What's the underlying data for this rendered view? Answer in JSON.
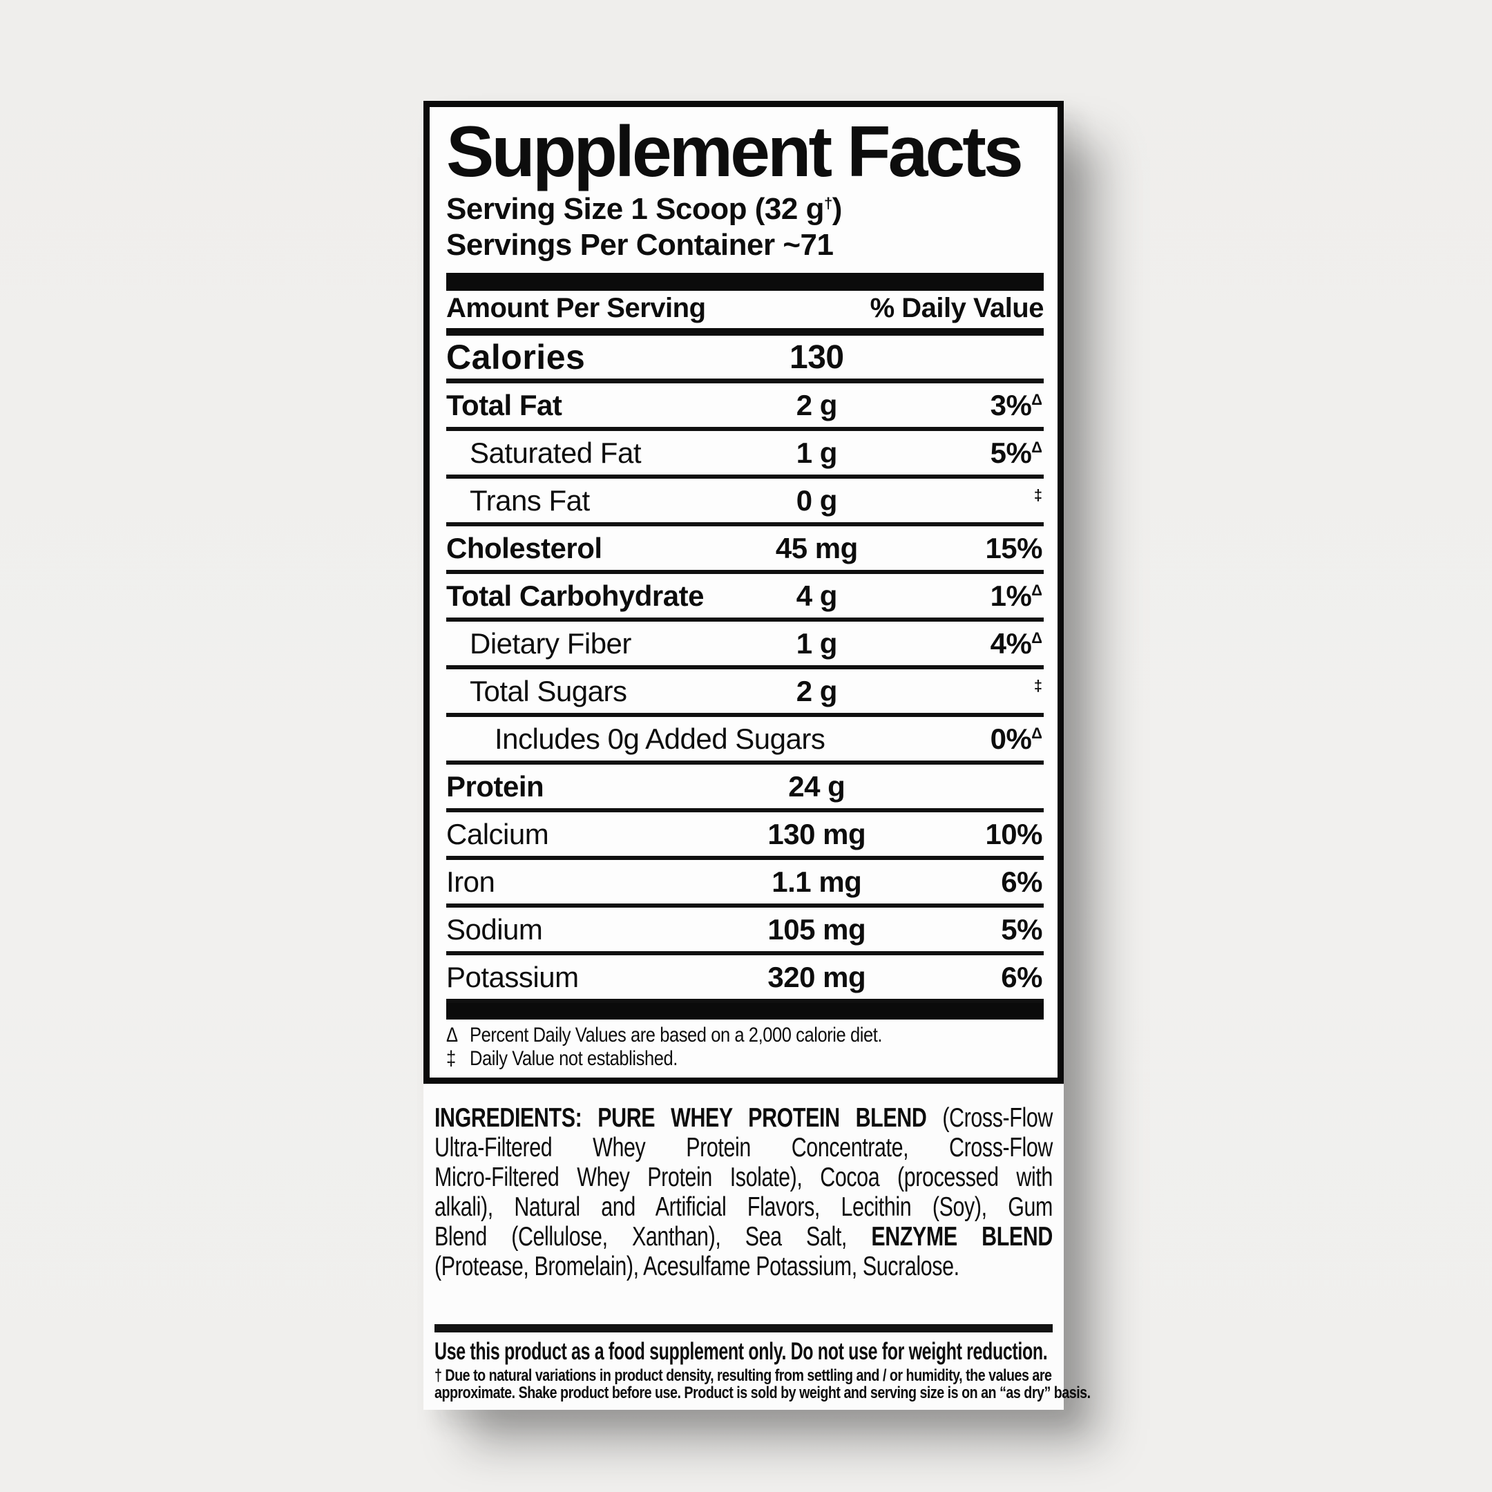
{
  "colors": {
    "page_bg": "#f0efee",
    "label_bg": "#fcfcfc",
    "ink": "#0d0d0d",
    "shadow": "rgba(30,30,30,0.34)"
  },
  "facts": {
    "title": "Supplement Facts",
    "serving_prefix": "Serving Size 1 Scoop (32 g",
    "serving_dagger": "†",
    "serving_suffix": ")",
    "servings_per_container": "Servings Per Container ~71",
    "amount_header": "Amount Per Serving",
    "dv_header": "% Daily Value",
    "calories_label": "Calories",
    "calories_value": "130",
    "rows": [
      {
        "label": "Total Fat",
        "amount": "2 g",
        "dv": "3%",
        "sym": "Δ"
      },
      {
        "label": "Saturated Fat",
        "amount": "1 g",
        "dv": "5%",
        "sym": "Δ"
      },
      {
        "label": "Trans Fat",
        "amount": "0 g",
        "dv": "",
        "sym": "‡"
      },
      {
        "label": "Cholesterol",
        "amount": "45 mg",
        "dv": "15%",
        "sym": ""
      },
      {
        "label": "Total Carbohydrate",
        "amount": "4 g",
        "dv": "1%",
        "sym": "Δ"
      },
      {
        "label": "Dietary Fiber",
        "amount": "1 g",
        "dv": "4%",
        "sym": "Δ"
      },
      {
        "label": "Total Sugars",
        "amount": "2 g",
        "dv": "",
        "sym": "‡"
      },
      {
        "label": "Includes 0g Added Sugars",
        "amount": "",
        "dv": "0%",
        "sym": "Δ"
      },
      {
        "label": "Protein",
        "amount": "24 g",
        "dv": "",
        "sym": ""
      },
      {
        "label": "Calcium",
        "amount": "130 mg",
        "dv": "10%",
        "sym": ""
      },
      {
        "label": "Iron",
        "amount": "1.1 mg",
        "dv": "6%",
        "sym": ""
      },
      {
        "label": "Sodium",
        "amount": "105 mg",
        "dv": "5%",
        "sym": ""
      },
      {
        "label": "Potassium",
        "amount": "320 mg",
        "dv": "6%",
        "sym": ""
      }
    ],
    "footnotes": [
      {
        "sym": "Δ",
        "text": "Percent Daily Values are based on a 2,000 calorie diet."
      },
      {
        "sym": "‡",
        "text": "Daily Value not established."
      }
    ]
  },
  "ingredients": {
    "line1_bold": "INGREDIENTS: PURE WHEY PROTEIN BLEND",
    "line1_rest": " (Cross-Flow",
    "line2": "Ultra-Filtered Whey Protein Concentrate, Cross-Flow",
    "line3": "Micro-Filtered Whey Protein Isolate), Cocoa (processed with",
    "line4": "alkali), Natural and Artificial Flavors, Lecithin (Soy), Gum",
    "line5_rest": "Blend (Cellulose, Xanthan), Sea Salt,",
    "line5_bold": " ENZYME BLEND",
    "line6": "(Protease, Bromelain), Acesulfame Potassium, Sucralose."
  },
  "directions": {
    "usage": "Use this product as a food supplement only. Do not use for weight reduction.",
    "note_line1": "† Due to natural variations in product density, resulting from settling and / or humidity, the values are",
    "note_line2": "approximate. Shake product before use. Product is sold by weight and serving size is on an “as dry” basis."
  }
}
